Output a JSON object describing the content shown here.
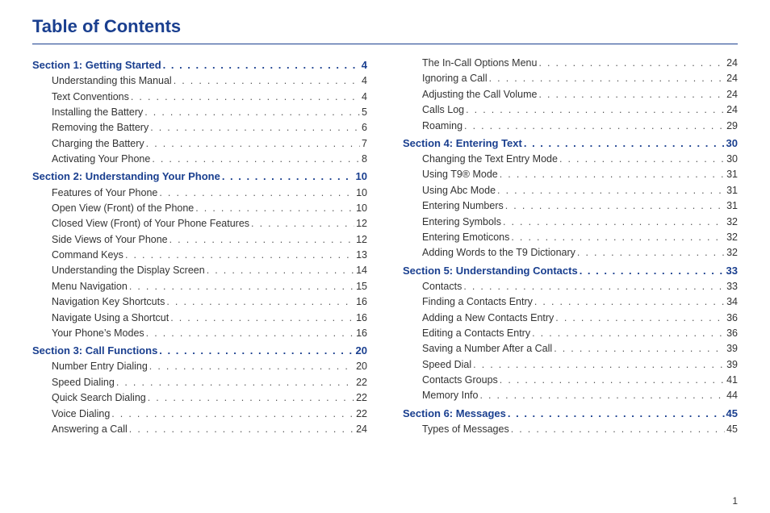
{
  "title": "Table of Contents",
  "page_number": "1",
  "colors": {
    "heading": "#1a3f8f",
    "body": "#333333",
    "background": "#ffffff"
  },
  "typography": {
    "title_fontsize": 22,
    "section_fontsize": 13,
    "sub_fontsize": 12.5,
    "font_family": "Arial"
  },
  "columns": [
    [
      {
        "type": "section",
        "label": "Section 1:  Getting Started",
        "page": "4"
      },
      {
        "type": "sub",
        "label": "Understanding this Manual",
        "page": "4"
      },
      {
        "type": "sub",
        "label": "Text Conventions",
        "page": "4"
      },
      {
        "type": "sub",
        "label": "Installing the Battery",
        "page": "5"
      },
      {
        "type": "sub",
        "label": "Removing the Battery",
        "page": "6"
      },
      {
        "type": "sub",
        "label": "Charging the Battery",
        "page": "7"
      },
      {
        "type": "sub",
        "label": "Activating Your Phone",
        "page": "8"
      },
      {
        "type": "section",
        "label": "Section 2:  Understanding Your Phone",
        "page": "10"
      },
      {
        "type": "sub",
        "label": "Features of Your Phone",
        "page": "10"
      },
      {
        "type": "sub",
        "label": "Open View (Front) of the Phone",
        "page": "10"
      },
      {
        "type": "sub",
        "label": "Closed View (Front) of Your Phone Features",
        "page": "12"
      },
      {
        "type": "sub",
        "label": "Side Views of Your Phone",
        "page": "12"
      },
      {
        "type": "sub",
        "label": "Command Keys",
        "page": "13"
      },
      {
        "type": "sub",
        "label": "Understanding the Display Screen",
        "page": "14"
      },
      {
        "type": "sub",
        "label": "Menu Navigation",
        "page": "15"
      },
      {
        "type": "sub",
        "label": "Navigation Key Shortcuts",
        "page": "16"
      },
      {
        "type": "sub",
        "label": "Navigate Using a Shortcut",
        "page": "16"
      },
      {
        "type": "sub",
        "label": "Your Phone’s Modes",
        "page": "16"
      },
      {
        "type": "section",
        "label": "Section 3:  Call Functions",
        "page": "20"
      },
      {
        "type": "sub",
        "label": "Number Entry Dialing",
        "page": "20"
      },
      {
        "type": "sub",
        "label": "Speed Dialing",
        "page": "22"
      },
      {
        "type": "sub",
        "label": "Quick Search Dialing",
        "page": "22"
      },
      {
        "type": "sub",
        "label": "Voice Dialing",
        "page": "22"
      },
      {
        "type": "sub",
        "label": "Answering a Call",
        "page": "24"
      }
    ],
    [
      {
        "type": "sub",
        "label": "The In-Call Options Menu",
        "page": "24"
      },
      {
        "type": "sub",
        "label": "Ignoring a Call",
        "page": "24"
      },
      {
        "type": "sub",
        "label": "Adjusting the Call Volume",
        "page": "24"
      },
      {
        "type": "sub",
        "label": "Calls Log",
        "page": "24"
      },
      {
        "type": "sub",
        "label": "Roaming",
        "page": "29"
      },
      {
        "type": "section",
        "label": "Section 4:  Entering Text",
        "page": "30"
      },
      {
        "type": "sub",
        "label": "Changing the Text Entry Mode",
        "page": "30"
      },
      {
        "type": "sub",
        "label": "Using T9® Mode",
        "page": "31"
      },
      {
        "type": "sub",
        "label": "Using Abc Mode",
        "page": "31"
      },
      {
        "type": "sub",
        "label": "Entering Numbers",
        "page": "31"
      },
      {
        "type": "sub",
        "label": "Entering Symbols",
        "page": "32"
      },
      {
        "type": "sub",
        "label": "Entering Emoticons",
        "page": "32"
      },
      {
        "type": "sub",
        "label": "Adding Words to the T9 Dictionary",
        "page": "32"
      },
      {
        "type": "section",
        "label": "Section 5:  Understanding Contacts",
        "page": "33"
      },
      {
        "type": "sub",
        "label": "Contacts",
        "page": "33"
      },
      {
        "type": "sub",
        "label": "Finding a Contacts Entry",
        "page": "34"
      },
      {
        "type": "sub",
        "label": "Adding a New Contacts Entry",
        "page": "36"
      },
      {
        "type": "sub",
        "label": "Editing a Contacts Entry",
        "page": "36"
      },
      {
        "type": "sub",
        "label": "Saving a Number After a Call",
        "page": "39"
      },
      {
        "type": "sub",
        "label": "Speed Dial",
        "page": "39"
      },
      {
        "type": "sub",
        "label": "Contacts Groups",
        "page": "41"
      },
      {
        "type": "sub",
        "label": "Memory Info",
        "page": "44"
      },
      {
        "type": "section",
        "label": "Section 6:  Messages",
        "page": "45"
      },
      {
        "type": "sub",
        "label": "Types of Messages",
        "page": "45"
      }
    ]
  ]
}
